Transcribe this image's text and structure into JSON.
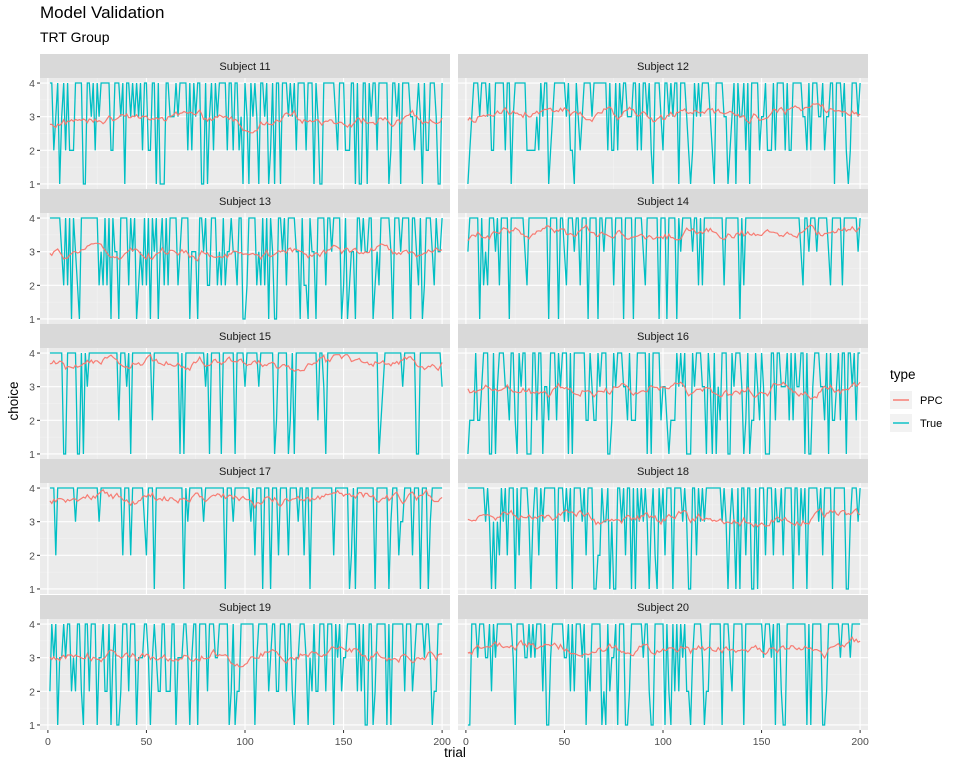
{
  "chart_data": {
    "type": "line",
    "title": "Model Validation",
    "subtitle": "TRT Group",
    "xlabel": "trial",
    "ylabel": "choice",
    "xlim": [
      -4,
      204
    ],
    "ylim": [
      0.85,
      4.15
    ],
    "x_ticks": [
      0,
      50,
      100,
      150,
      200
    ],
    "y_ticks": [
      1,
      2,
      3,
      4
    ],
    "grid": true,
    "legend": {
      "title": "type",
      "position": "right",
      "entries": [
        {
          "label": "PPC",
          "color": "#F8766D"
        },
        {
          "label": "True",
          "color": "#00BFC4"
        }
      ]
    },
    "facets": [
      {
        "name": "Subject 11"
      },
      {
        "name": "Subject 12"
      },
      {
        "name": "Subject 13"
      },
      {
        "name": "Subject 14"
      },
      {
        "name": "Subject 15"
      },
      {
        "name": "Subject 16"
      },
      {
        "name": "Subject 17"
      },
      {
        "name": "Subject 18"
      },
      {
        "name": "Subject 19"
      },
      {
        "name": "Subject 20"
      }
    ],
    "series_note_x": "trial 1..200 per subject",
    "series": [
      {
        "name": "PPC",
        "color": "#F8766D"
      },
      {
        "name": "True",
        "color": "#00BFC4"
      }
    ],
    "subject_profiles": [
      {
        "subject": "Subject 11",
        "true_values_sample": [
          4,
          4,
          3,
          4,
          2,
          4,
          1,
          4,
          3,
          4,
          4,
          2,
          4,
          1,
          3,
          4,
          4,
          2,
          4,
          3
        ],
        "ppc_mean": 2.8
      },
      {
        "subject": "Subject 12",
        "true_values_sample": [
          2,
          4,
          3,
          4,
          4,
          3,
          2,
          4,
          4,
          3,
          4,
          4,
          2,
          4,
          3,
          4,
          4,
          4,
          3,
          2
        ],
        "ppc_mean": 3.0
      },
      {
        "subject": "Subject 13",
        "true_values_sample": [
          3,
          4,
          4,
          4,
          2,
          4,
          1,
          3,
          4,
          2,
          4,
          3,
          2,
          4,
          1,
          3,
          4,
          4,
          2,
          4
        ],
        "ppc_mean": 2.9
      },
      {
        "subject": "Subject 14",
        "true_values_sample": [
          2,
          4,
          4,
          1,
          4,
          4,
          4,
          4,
          3,
          4,
          4,
          4,
          1,
          3,
          4,
          4,
          4,
          3,
          4,
          4
        ],
        "ppc_mean": 3.4
      },
      {
        "subject": "Subject 15",
        "true_values_sample": [
          1,
          4,
          4,
          4,
          3,
          4,
          4,
          4,
          4,
          1,
          4,
          4,
          4,
          4,
          4,
          4,
          2,
          4,
          4,
          4
        ],
        "ppc_mean": 3.6
      },
      {
        "subject": "Subject 16",
        "true_values_sample": [
          2,
          3,
          4,
          1,
          4,
          3,
          4,
          2,
          4,
          1,
          4,
          4,
          3,
          2,
          4,
          4,
          1,
          3,
          4,
          2
        ],
        "ppc_mean": 2.9
      },
      {
        "subject": "Subject 17",
        "true_values_sample": [
          2,
          4,
          4,
          4,
          3,
          4,
          4,
          4,
          4,
          1,
          4,
          4,
          2,
          4,
          4,
          3,
          4,
          1,
          4,
          4
        ],
        "ppc_mean": 3.5
      },
      {
        "subject": "Subject 18",
        "true_values_sample": [
          3,
          4,
          1,
          4,
          4,
          3,
          2,
          4,
          4,
          1,
          4,
          3,
          4,
          4,
          2,
          4,
          4,
          3,
          1,
          3
        ],
        "ppc_mean": 3.0
      },
      {
        "subject": "Subject 19",
        "true_values_sample": [
          2,
          4,
          4,
          1,
          4,
          3,
          4,
          2,
          4,
          4,
          3,
          4,
          1,
          4,
          4,
          2,
          4,
          3,
          4,
          3
        ],
        "ppc_mean": 3.0
      },
      {
        "subject": "Subject 20",
        "true_values_sample": [
          2,
          4,
          4,
          1,
          4,
          4,
          3,
          4,
          4,
          4,
          2,
          4,
          4,
          4,
          3,
          4,
          1,
          4,
          4,
          3
        ],
        "ppc_mean": 3.2
      }
    ]
  }
}
